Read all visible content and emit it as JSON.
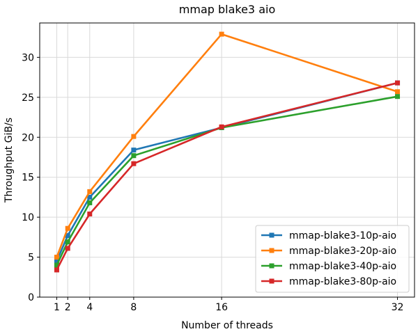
{
  "chart_data": {
    "type": "line",
    "title": "mmap blake3 aio",
    "xlabel": "Number of threads",
    "ylabel": "Throughput GiB/s",
    "x": [
      1,
      2,
      4,
      8,
      16,
      32
    ],
    "xticks": [
      1,
      2,
      4,
      8,
      16,
      32
    ],
    "yticks": [
      0,
      5,
      10,
      15,
      20,
      25,
      30
    ],
    "xlim": [
      -0.55,
      33.55
    ],
    "ylim": [
      0,
      34.3
    ],
    "grid": true,
    "legend_position": "bottom-right",
    "series": [
      {
        "name": "mmap-blake3-10p-aio",
        "color": "#1f77b4",
        "values": [
          4.5,
          7.7,
          12.5,
          18.4,
          21.2,
          26.8
        ]
      },
      {
        "name": "mmap-blake3-20p-aio",
        "color": "#ff7f0e",
        "values": [
          5.0,
          8.6,
          13.2,
          20.1,
          32.9,
          25.7
        ]
      },
      {
        "name": "mmap-blake3-40p-aio",
        "color": "#2ca02c",
        "values": [
          4.0,
          6.9,
          11.8,
          17.7,
          21.2,
          25.1
        ]
      },
      {
        "name": "mmap-blake3-80p-aio",
        "color": "#d62728",
        "values": [
          3.4,
          6.1,
          10.4,
          16.7,
          21.3,
          26.8
        ]
      }
    ]
  }
}
